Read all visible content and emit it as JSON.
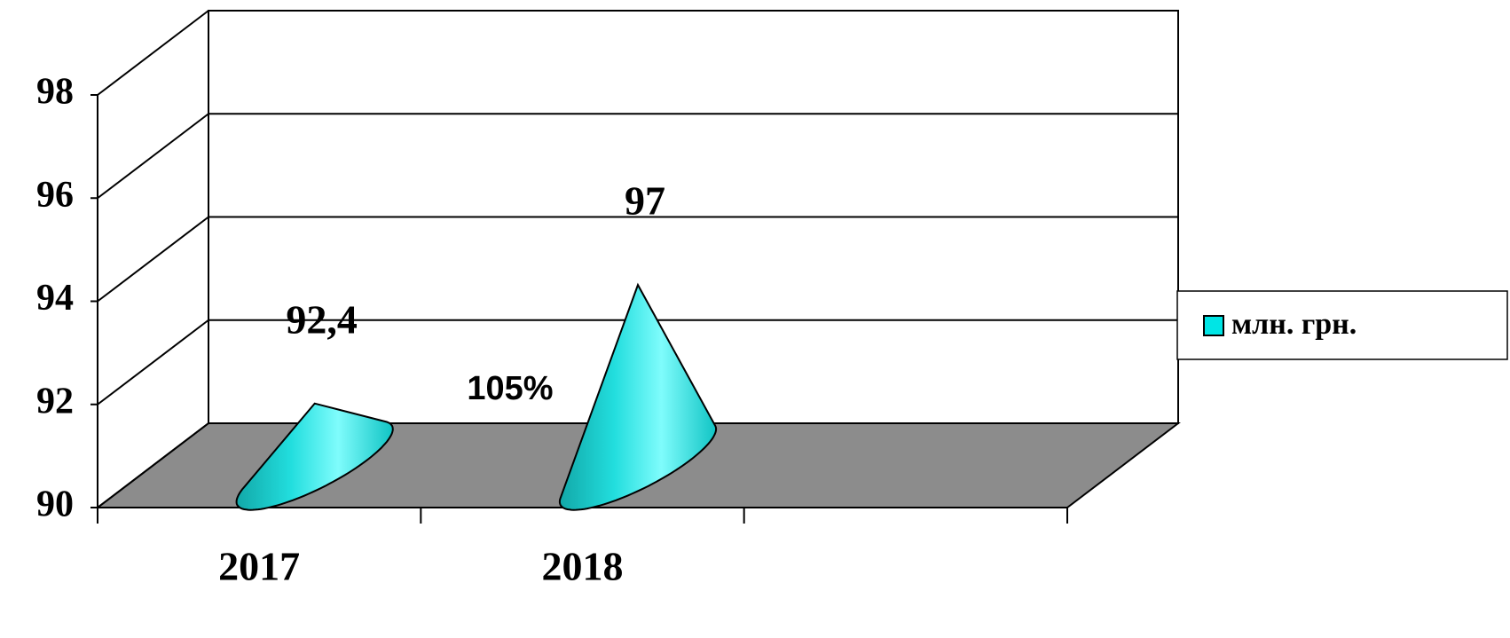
{
  "chart_data": {
    "type": "cone",
    "categories": [
      "2017",
      "2018",
      null
    ],
    "values": [
      92.4,
      97,
      null
    ],
    "value_labels": [
      "92,4",
      "97",
      null
    ],
    "series_name": "млн. грн.",
    "color": "#00e5e5",
    "floor_color": "#8c8c8c",
    "annotations": [
      "105%"
    ],
    "ylim": [
      90,
      98
    ],
    "yticks": [
      90,
      92,
      94,
      96,
      98
    ],
    "grid": true,
    "legend": "right"
  }
}
